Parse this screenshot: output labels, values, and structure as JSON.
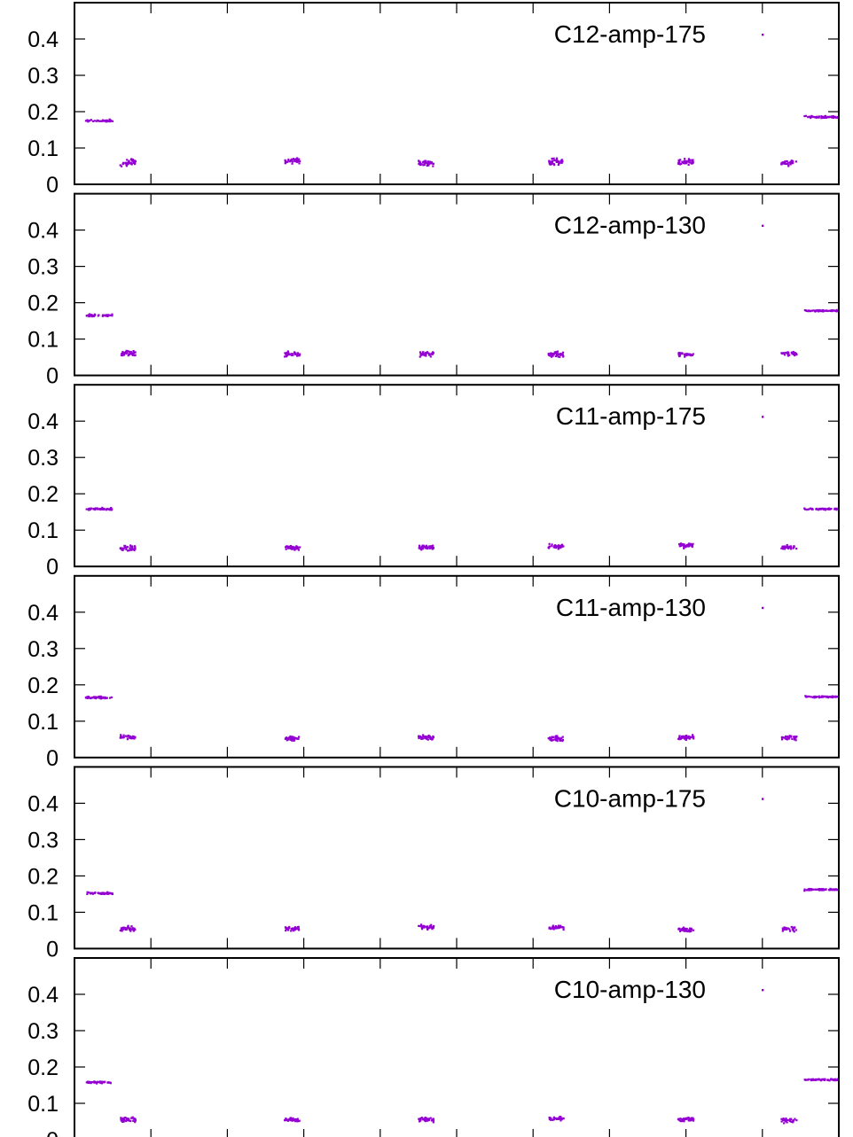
{
  "chart_data": {
    "type": "scatter",
    "series_color": "#9400d3",
    "yticks": [
      "0",
      "0.1",
      "0.2",
      "0.3",
      "0.4"
    ],
    "ylim": [
      0,
      0.5
    ],
    "xlim": [
      0,
      10
    ],
    "xticks": [
      1,
      2,
      3,
      4,
      5,
      6,
      7,
      8,
      9
    ],
    "panels": [
      {
        "name": "C12-amp-175",
        "clusters": [
          {
            "x_start": 0.15,
            "x_end": 0.5,
            "y": 0.175,
            "spread": 0.004,
            "points": 45
          },
          {
            "x_start": 0.6,
            "x_end": 0.8,
            "y": 0.06,
            "spread": 0.012,
            "points": 40
          },
          {
            "x_start": 2.75,
            "x_end": 2.95,
            "y": 0.065,
            "spread": 0.01,
            "points": 40
          },
          {
            "x_start": 4.5,
            "x_end": 4.7,
            "y": 0.058,
            "spread": 0.01,
            "points": 40
          },
          {
            "x_start": 6.2,
            "x_end": 6.4,
            "y": 0.062,
            "spread": 0.012,
            "points": 40
          },
          {
            "x_start": 7.9,
            "x_end": 8.1,
            "y": 0.062,
            "spread": 0.01,
            "points": 40
          },
          {
            "x_start": 9.25,
            "x_end": 9.45,
            "y": 0.058,
            "spread": 0.01,
            "points": 30
          },
          {
            "x_start": 9.55,
            "x_end": 10.0,
            "y": 0.185,
            "spread": 0.004,
            "points": 55
          }
        ]
      },
      {
        "name": "C12-amp-130",
        "clusters": [
          {
            "x_start": 0.15,
            "x_end": 0.5,
            "y": 0.165,
            "spread": 0.004,
            "points": 45
          },
          {
            "x_start": 0.6,
            "x_end": 0.8,
            "y": 0.06,
            "spread": 0.012,
            "points": 40
          },
          {
            "x_start": 2.75,
            "x_end": 2.95,
            "y": 0.058,
            "spread": 0.01,
            "points": 40
          },
          {
            "x_start": 4.5,
            "x_end": 4.7,
            "y": 0.058,
            "spread": 0.01,
            "points": 40
          },
          {
            "x_start": 6.2,
            "x_end": 6.4,
            "y": 0.058,
            "spread": 0.01,
            "points": 40
          },
          {
            "x_start": 7.9,
            "x_end": 8.1,
            "y": 0.058,
            "spread": 0.01,
            "points": 40
          },
          {
            "x_start": 9.25,
            "x_end": 9.45,
            "y": 0.058,
            "spread": 0.01,
            "points": 30
          },
          {
            "x_start": 9.55,
            "x_end": 10.0,
            "y": 0.178,
            "spread": 0.003,
            "points": 55
          }
        ]
      },
      {
        "name": "C11-amp-175",
        "clusters": [
          {
            "x_start": 0.15,
            "x_end": 0.5,
            "y": 0.158,
            "spread": 0.004,
            "points": 45
          },
          {
            "x_start": 0.6,
            "x_end": 0.8,
            "y": 0.05,
            "spread": 0.01,
            "points": 40
          },
          {
            "x_start": 2.75,
            "x_end": 2.95,
            "y": 0.052,
            "spread": 0.008,
            "points": 40
          },
          {
            "x_start": 4.5,
            "x_end": 4.7,
            "y": 0.053,
            "spread": 0.008,
            "points": 40
          },
          {
            "x_start": 6.2,
            "x_end": 6.4,
            "y": 0.055,
            "spread": 0.01,
            "points": 40
          },
          {
            "x_start": 7.9,
            "x_end": 8.1,
            "y": 0.058,
            "spread": 0.01,
            "points": 40
          },
          {
            "x_start": 9.25,
            "x_end": 9.45,
            "y": 0.052,
            "spread": 0.008,
            "points": 30
          },
          {
            "x_start": 9.55,
            "x_end": 10.0,
            "y": 0.158,
            "spread": 0.003,
            "points": 55
          }
        ]
      },
      {
        "name": "C11-amp-130",
        "clusters": [
          {
            "x_start": 0.15,
            "x_end": 0.5,
            "y": 0.165,
            "spread": 0.004,
            "points": 45
          },
          {
            "x_start": 0.6,
            "x_end": 0.8,
            "y": 0.055,
            "spread": 0.01,
            "points": 40
          },
          {
            "x_start": 2.75,
            "x_end": 2.95,
            "y": 0.052,
            "spread": 0.008,
            "points": 40
          },
          {
            "x_start": 4.5,
            "x_end": 4.7,
            "y": 0.055,
            "spread": 0.008,
            "points": 40
          },
          {
            "x_start": 6.2,
            "x_end": 6.4,
            "y": 0.052,
            "spread": 0.01,
            "points": 40
          },
          {
            "x_start": 7.9,
            "x_end": 8.1,
            "y": 0.055,
            "spread": 0.01,
            "points": 40
          },
          {
            "x_start": 9.25,
            "x_end": 9.45,
            "y": 0.055,
            "spread": 0.008,
            "points": 30
          },
          {
            "x_start": 9.55,
            "x_end": 10.0,
            "y": 0.167,
            "spread": 0.003,
            "points": 55
          }
        ]
      },
      {
        "name": "C10-amp-175",
        "clusters": [
          {
            "x_start": 0.15,
            "x_end": 0.5,
            "y": 0.152,
            "spread": 0.004,
            "points": 45
          },
          {
            "x_start": 0.6,
            "x_end": 0.8,
            "y": 0.055,
            "spread": 0.01,
            "points": 40
          },
          {
            "x_start": 2.75,
            "x_end": 2.95,
            "y": 0.055,
            "spread": 0.01,
            "points": 40
          },
          {
            "x_start": 4.5,
            "x_end": 4.7,
            "y": 0.06,
            "spread": 0.01,
            "points": 40
          },
          {
            "x_start": 6.2,
            "x_end": 6.4,
            "y": 0.058,
            "spread": 0.008,
            "points": 40
          },
          {
            "x_start": 7.9,
            "x_end": 8.1,
            "y": 0.052,
            "spread": 0.008,
            "points": 40
          },
          {
            "x_start": 9.25,
            "x_end": 9.45,
            "y": 0.055,
            "spread": 0.01,
            "points": 30
          },
          {
            "x_start": 9.55,
            "x_end": 10.0,
            "y": 0.162,
            "spread": 0.004,
            "points": 55
          }
        ]
      },
      {
        "name": "C10-amp-130",
        "clusters": [
          {
            "x_start": 0.15,
            "x_end": 0.5,
            "y": 0.158,
            "spread": 0.004,
            "points": 45
          },
          {
            "x_start": 0.6,
            "x_end": 0.8,
            "y": 0.055,
            "spread": 0.01,
            "points": 40
          },
          {
            "x_start": 2.75,
            "x_end": 2.95,
            "y": 0.055,
            "spread": 0.008,
            "points": 40
          },
          {
            "x_start": 4.5,
            "x_end": 4.7,
            "y": 0.055,
            "spread": 0.008,
            "points": 40
          },
          {
            "x_start": 6.2,
            "x_end": 6.4,
            "y": 0.058,
            "spread": 0.008,
            "points": 40
          },
          {
            "x_start": 7.9,
            "x_end": 8.1,
            "y": 0.055,
            "spread": 0.008,
            "points": 40
          },
          {
            "x_start": 9.25,
            "x_end": 9.45,
            "y": 0.052,
            "spread": 0.01,
            "points": 30
          },
          {
            "x_start": 9.55,
            "x_end": 10.0,
            "y": 0.165,
            "spread": 0.003,
            "points": 55
          }
        ]
      }
    ]
  }
}
